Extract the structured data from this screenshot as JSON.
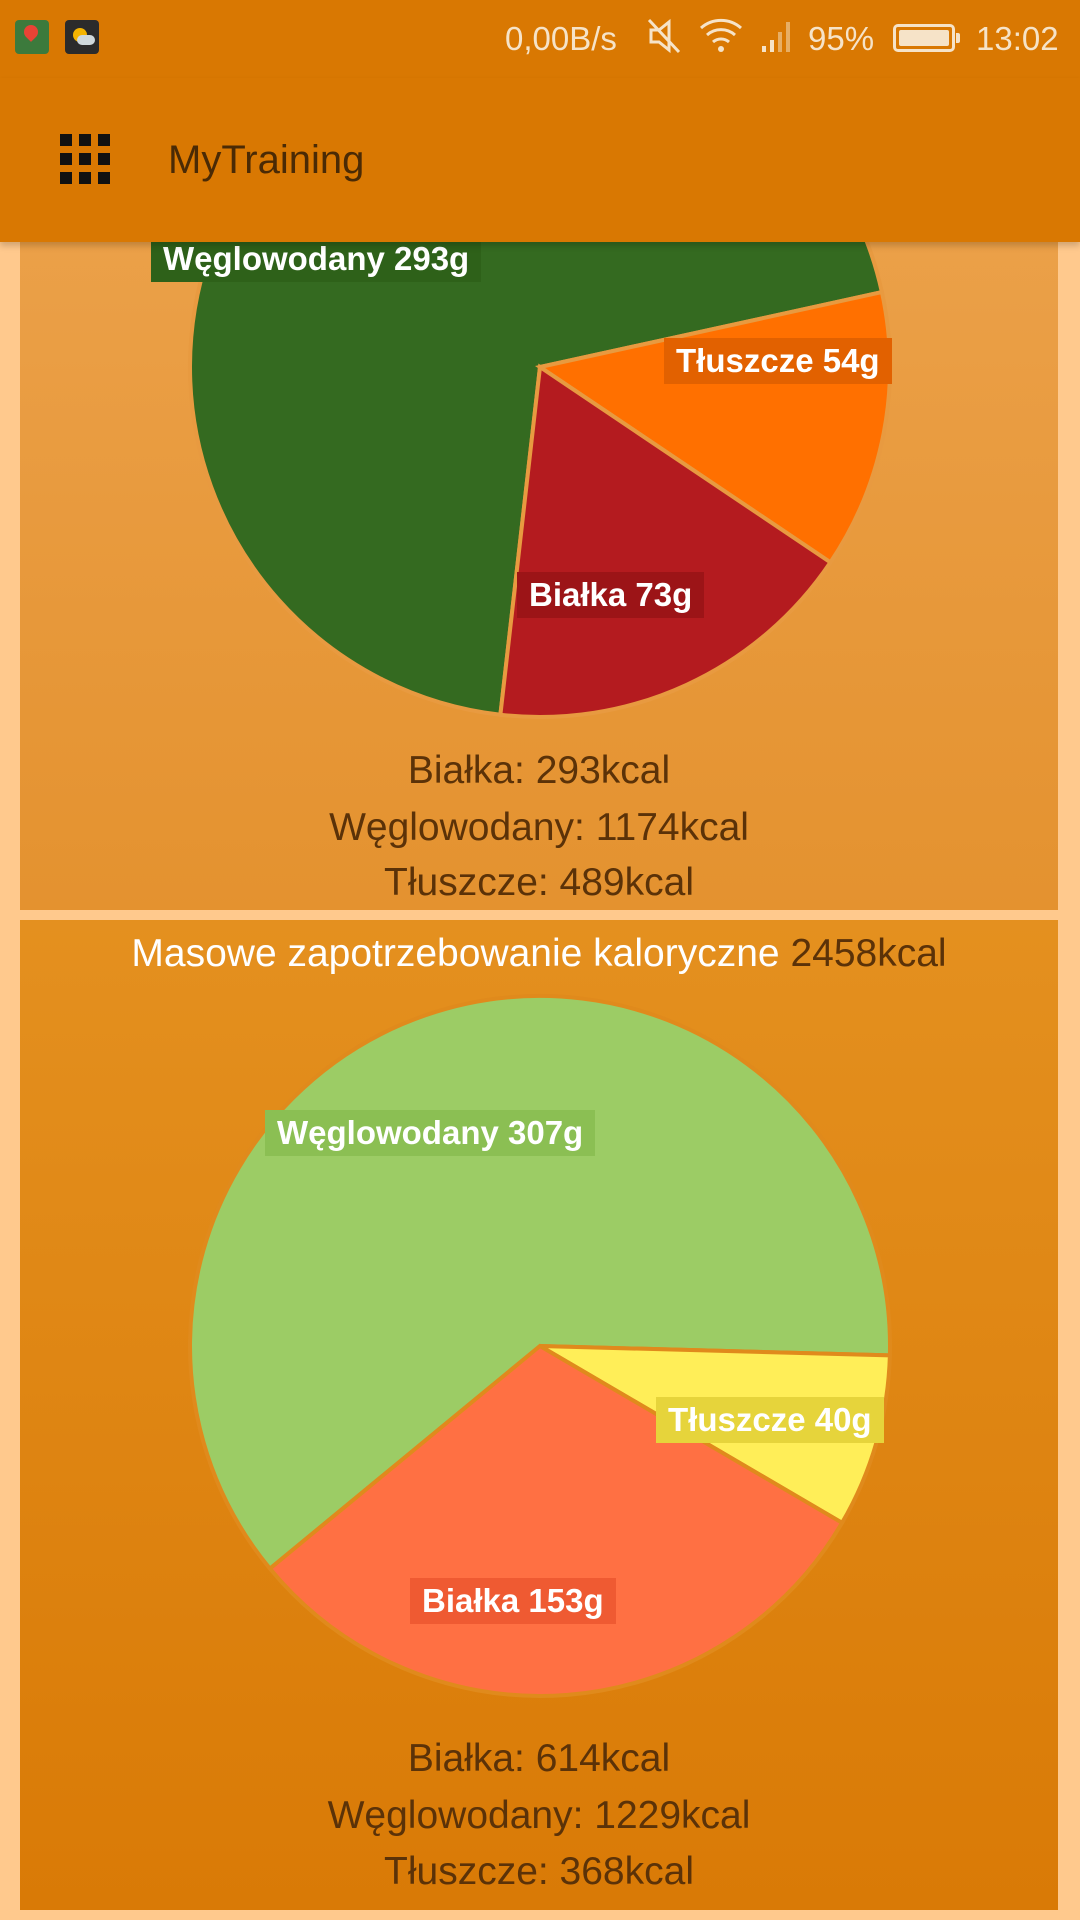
{
  "status_bar": {
    "speed": "0,00B/s",
    "battery_percent": "95%",
    "time": "13:02",
    "icons": [
      "maps-icon",
      "weather-icon",
      "mute-icon",
      "wifi-icon",
      "signal-icon",
      "battery-icon"
    ]
  },
  "app_bar": {
    "title": "MyTraining",
    "menu_icon": "apps-grid-icon"
  },
  "chart_data": [
    {
      "type": "pie",
      "title": "",
      "slices": [
        {
          "label": "Węglowodany 293g",
          "value": 293,
          "color": "#346a20"
        },
        {
          "label": "Tłuszcze 54g",
          "value": 54,
          "color": "#ff7000"
        },
        {
          "label": "Białka 73g",
          "value": 73,
          "color": "#b41b1f"
        }
      ],
      "kcal_lines": [
        "Białka: 293kcal",
        "Węglowodany: 1174kcal",
        "Tłuszcze: 489kcal"
      ]
    },
    {
      "type": "pie",
      "title": "Masowe zapotrzebowanie kaloryczne",
      "title_value": "2458kcal",
      "slices": [
        {
          "label": "Węglowodany 307g",
          "value": 307,
          "color": "#9ccc65"
        },
        {
          "label": "Tłuszcze 40g",
          "value": 40,
          "color": "#ffee58"
        },
        {
          "label": "Białka 153g",
          "value": 153,
          "color": "#ff7043"
        }
      ],
      "kcal_lines": [
        "Białka: 614kcal",
        "Węglowodany: 1229kcal",
        "Tłuszcze: 368kcal"
      ]
    }
  ],
  "colors": {
    "primary": "#d97802",
    "background": "#ffc98d"
  }
}
